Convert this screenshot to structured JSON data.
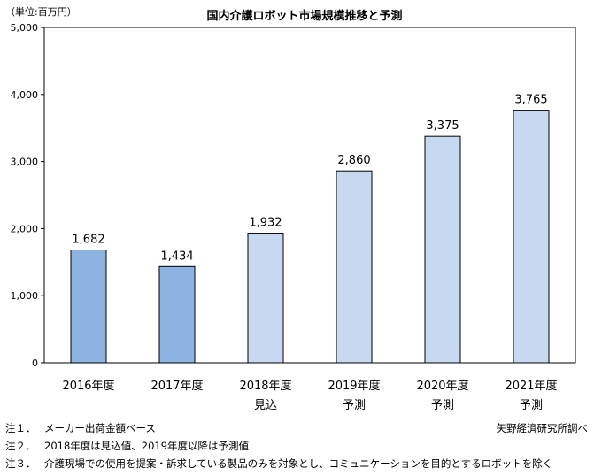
{
  "chart_data": {
    "type": "bar",
    "title": "国内介護ロボット市場規模推移と予測",
    "unit": "（単位:百万円）",
    "categories": [
      {
        "year": "2016年度",
        "sub": ""
      },
      {
        "year": "2017年度",
        "sub": ""
      },
      {
        "year": "2018年度",
        "sub": "見込"
      },
      {
        "year": "2019年度",
        "sub": "予測"
      },
      {
        "year": "2020年度",
        "sub": "予測"
      },
      {
        "year": "2021年度",
        "sub": "予測"
      }
    ],
    "values": [
      1682,
      1434,
      1932,
      2860,
      3375,
      3765
    ],
    "value_labels": [
      "1,682",
      "1,434",
      "1,932",
      "2,860",
      "3,375",
      "3,765"
    ],
    "kinds": [
      "actual",
      "actual",
      "estimate",
      "forecast",
      "forecast",
      "forecast"
    ],
    "ylim": [
      0,
      5000
    ],
    "yticks": [
      0,
      1000,
      2000,
      3000,
      4000,
      5000
    ],
    "ytick_labels": [
      "0",
      "1,000",
      "2,000",
      "3,000",
      "4,000",
      "5,000"
    ],
    "colors": {
      "actual": "#8db3e2",
      "estimate": "#c6d9f1",
      "forecast": "#c6d9f1"
    },
    "grid": false,
    "legend": "none"
  },
  "notes": [
    {
      "label": "注１．",
      "text": "メーカー出荷金額ベース"
    },
    {
      "label": "注２．",
      "text": "2018年度は見込値、2019年度以降は予測値"
    },
    {
      "label": "注３．",
      "text": "介護現場での使用を提案・訴求している製品のみを対象とし、コミュニケーションを目的とするロボットを除く"
    }
  ],
  "source": "矢野経済研究所調べ"
}
